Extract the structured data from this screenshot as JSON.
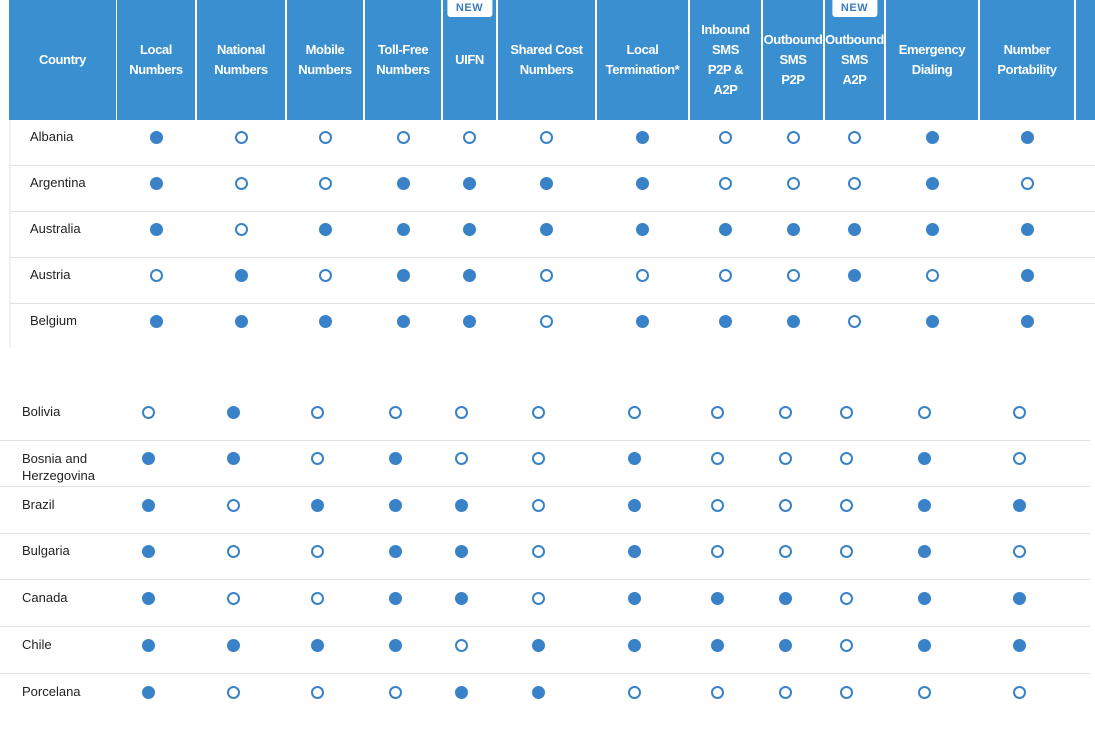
{
  "header": {
    "columns": [
      {
        "label": "Country",
        "badge": ""
      },
      {
        "label": "Local\nNumbers",
        "badge": ""
      },
      {
        "label": "National\nNumbers",
        "badge": ""
      },
      {
        "label": "Mobile\nNumbers",
        "badge": ""
      },
      {
        "label": "Toll-Free\nNumbers",
        "badge": ""
      },
      {
        "label": "UIFN",
        "badge": "NEW"
      },
      {
        "label": "Shared Cost\nNumbers",
        "badge": ""
      },
      {
        "label": "Local\nTermination*",
        "badge": ""
      },
      {
        "label": "Inbound\nSMS\nP2P &\nA2P",
        "badge": ""
      },
      {
        "label": "Outbound\nSMS\nP2P",
        "badge": ""
      },
      {
        "label": "Outbound\nSMS\nA2P",
        "badge": "NEW"
      },
      {
        "label": "Emergency\nDialing",
        "badge": ""
      },
      {
        "label": "Number\nPortability",
        "badge": ""
      }
    ]
  },
  "table": {
    "rows": [
      {
        "country": "Albania",
        "values": [
          1,
          0,
          0,
          0,
          0,
          0,
          1,
          0,
          0,
          0,
          1,
          1
        ]
      },
      {
        "country": "Argentina",
        "values": [
          1,
          0,
          0,
          1,
          1,
          1,
          1,
          0,
          0,
          0,
          1,
          0
        ]
      },
      {
        "country": "Australia",
        "values": [
          1,
          0,
          1,
          1,
          1,
          1,
          1,
          1,
          1,
          1,
          1,
          1
        ]
      },
      {
        "country": "Austria",
        "values": [
          0,
          1,
          0,
          1,
          1,
          0,
          0,
          0,
          0,
          1,
          0,
          1
        ]
      },
      {
        "country": "Belgium",
        "values": [
          1,
          1,
          1,
          1,
          1,
          0,
          1,
          1,
          1,
          0,
          1,
          1
        ]
      },
      {
        "country": "Bolivia",
        "values": [
          0,
          1,
          0,
          0,
          0,
          0,
          0,
          0,
          0,
          0,
          0,
          0
        ]
      },
      {
        "country": "Bosnia and\nHerzegovina",
        "values": [
          1,
          1,
          0,
          1,
          0,
          0,
          1,
          0,
          0,
          0,
          1,
          0
        ]
      },
      {
        "country": "Brazil",
        "values": [
          1,
          0,
          1,
          1,
          1,
          0,
          1,
          0,
          0,
          0,
          1,
          1
        ]
      },
      {
        "country": "Bulgaria",
        "values": [
          1,
          0,
          0,
          1,
          1,
          0,
          1,
          0,
          0,
          0,
          1,
          0
        ]
      },
      {
        "country": "Canada",
        "values": [
          1,
          0,
          0,
          1,
          1,
          0,
          1,
          1,
          1,
          0,
          1,
          1
        ]
      },
      {
        "country": "Chile",
        "values": [
          1,
          1,
          1,
          1,
          0,
          1,
          1,
          1,
          1,
          0,
          1,
          1
        ]
      },
      {
        "country": "Porcelana",
        "values": [
          1,
          0,
          0,
          0,
          1,
          1,
          0,
          0,
          0,
          0,
          0,
          0
        ]
      }
    ]
  },
  "legend": {
    "available": "filled-circle",
    "unavailable": "hollow-circle"
  },
  "colors": {
    "header_bg": "#3a8fd1",
    "dot": "#3a82c7",
    "row_divider": "#dfe3e8"
  }
}
